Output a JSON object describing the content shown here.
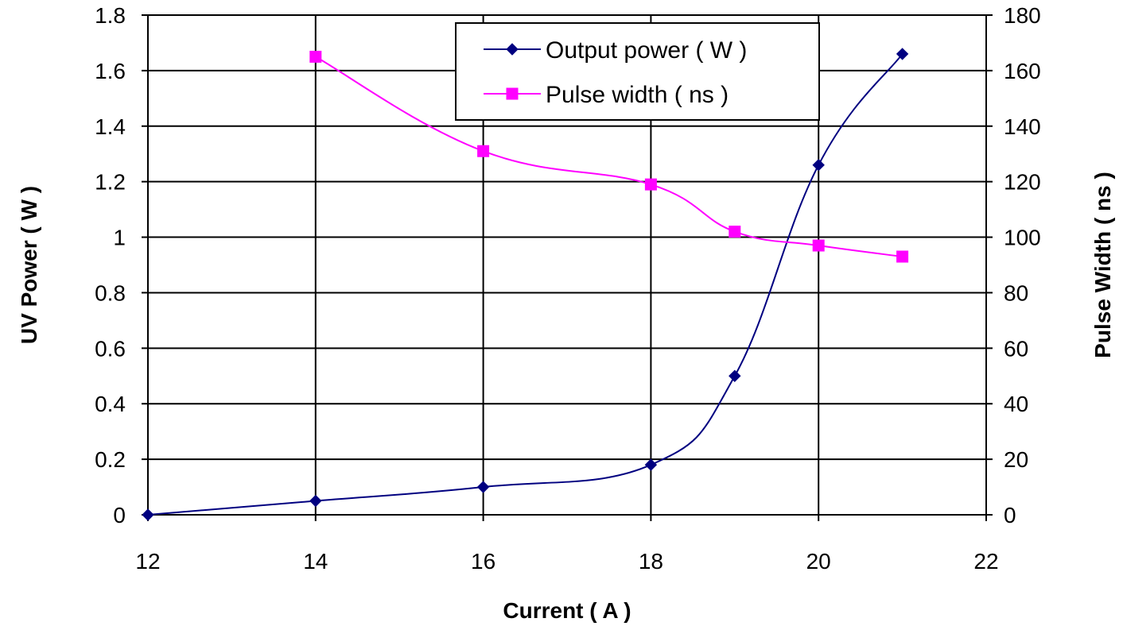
{
  "chart_data": {
    "type": "line",
    "xlabel": "Current ( A )",
    "ylabel": "UV Power ( W )",
    "y2label": "Pulse Width ( ns )",
    "xlim": [
      12,
      22
    ],
    "ylim": [
      0,
      1.8
    ],
    "y2lim": [
      0,
      180
    ],
    "x_ticks": [
      12,
      14,
      16,
      18,
      20,
      22
    ],
    "y_ticks": [
      0,
      0.2,
      0.4,
      0.6,
      0.8,
      1,
      1.2,
      1.4,
      1.6,
      1.8
    ],
    "y2_ticks": [
      0,
      20,
      40,
      60,
      80,
      100,
      120,
      140,
      160,
      180
    ],
    "grid": true,
    "legend_position": "top-center",
    "series": [
      {
        "name": "Output power ( W )",
        "axis": "left",
        "marker": "diamond",
        "color": "#000080",
        "x": [
          12,
          14,
          16,
          18,
          19,
          20,
          21
        ],
        "y": [
          0,
          0.05,
          0.1,
          0.18,
          0.5,
          1.26,
          1.66
        ]
      },
      {
        "name": "Pulse width ( ns )",
        "axis": "right",
        "marker": "square",
        "color": "#FF00FF",
        "x": [
          14,
          16,
          18,
          19,
          20,
          21
        ],
        "y": [
          165,
          131,
          119,
          102,
          97,
          93
        ]
      }
    ]
  }
}
